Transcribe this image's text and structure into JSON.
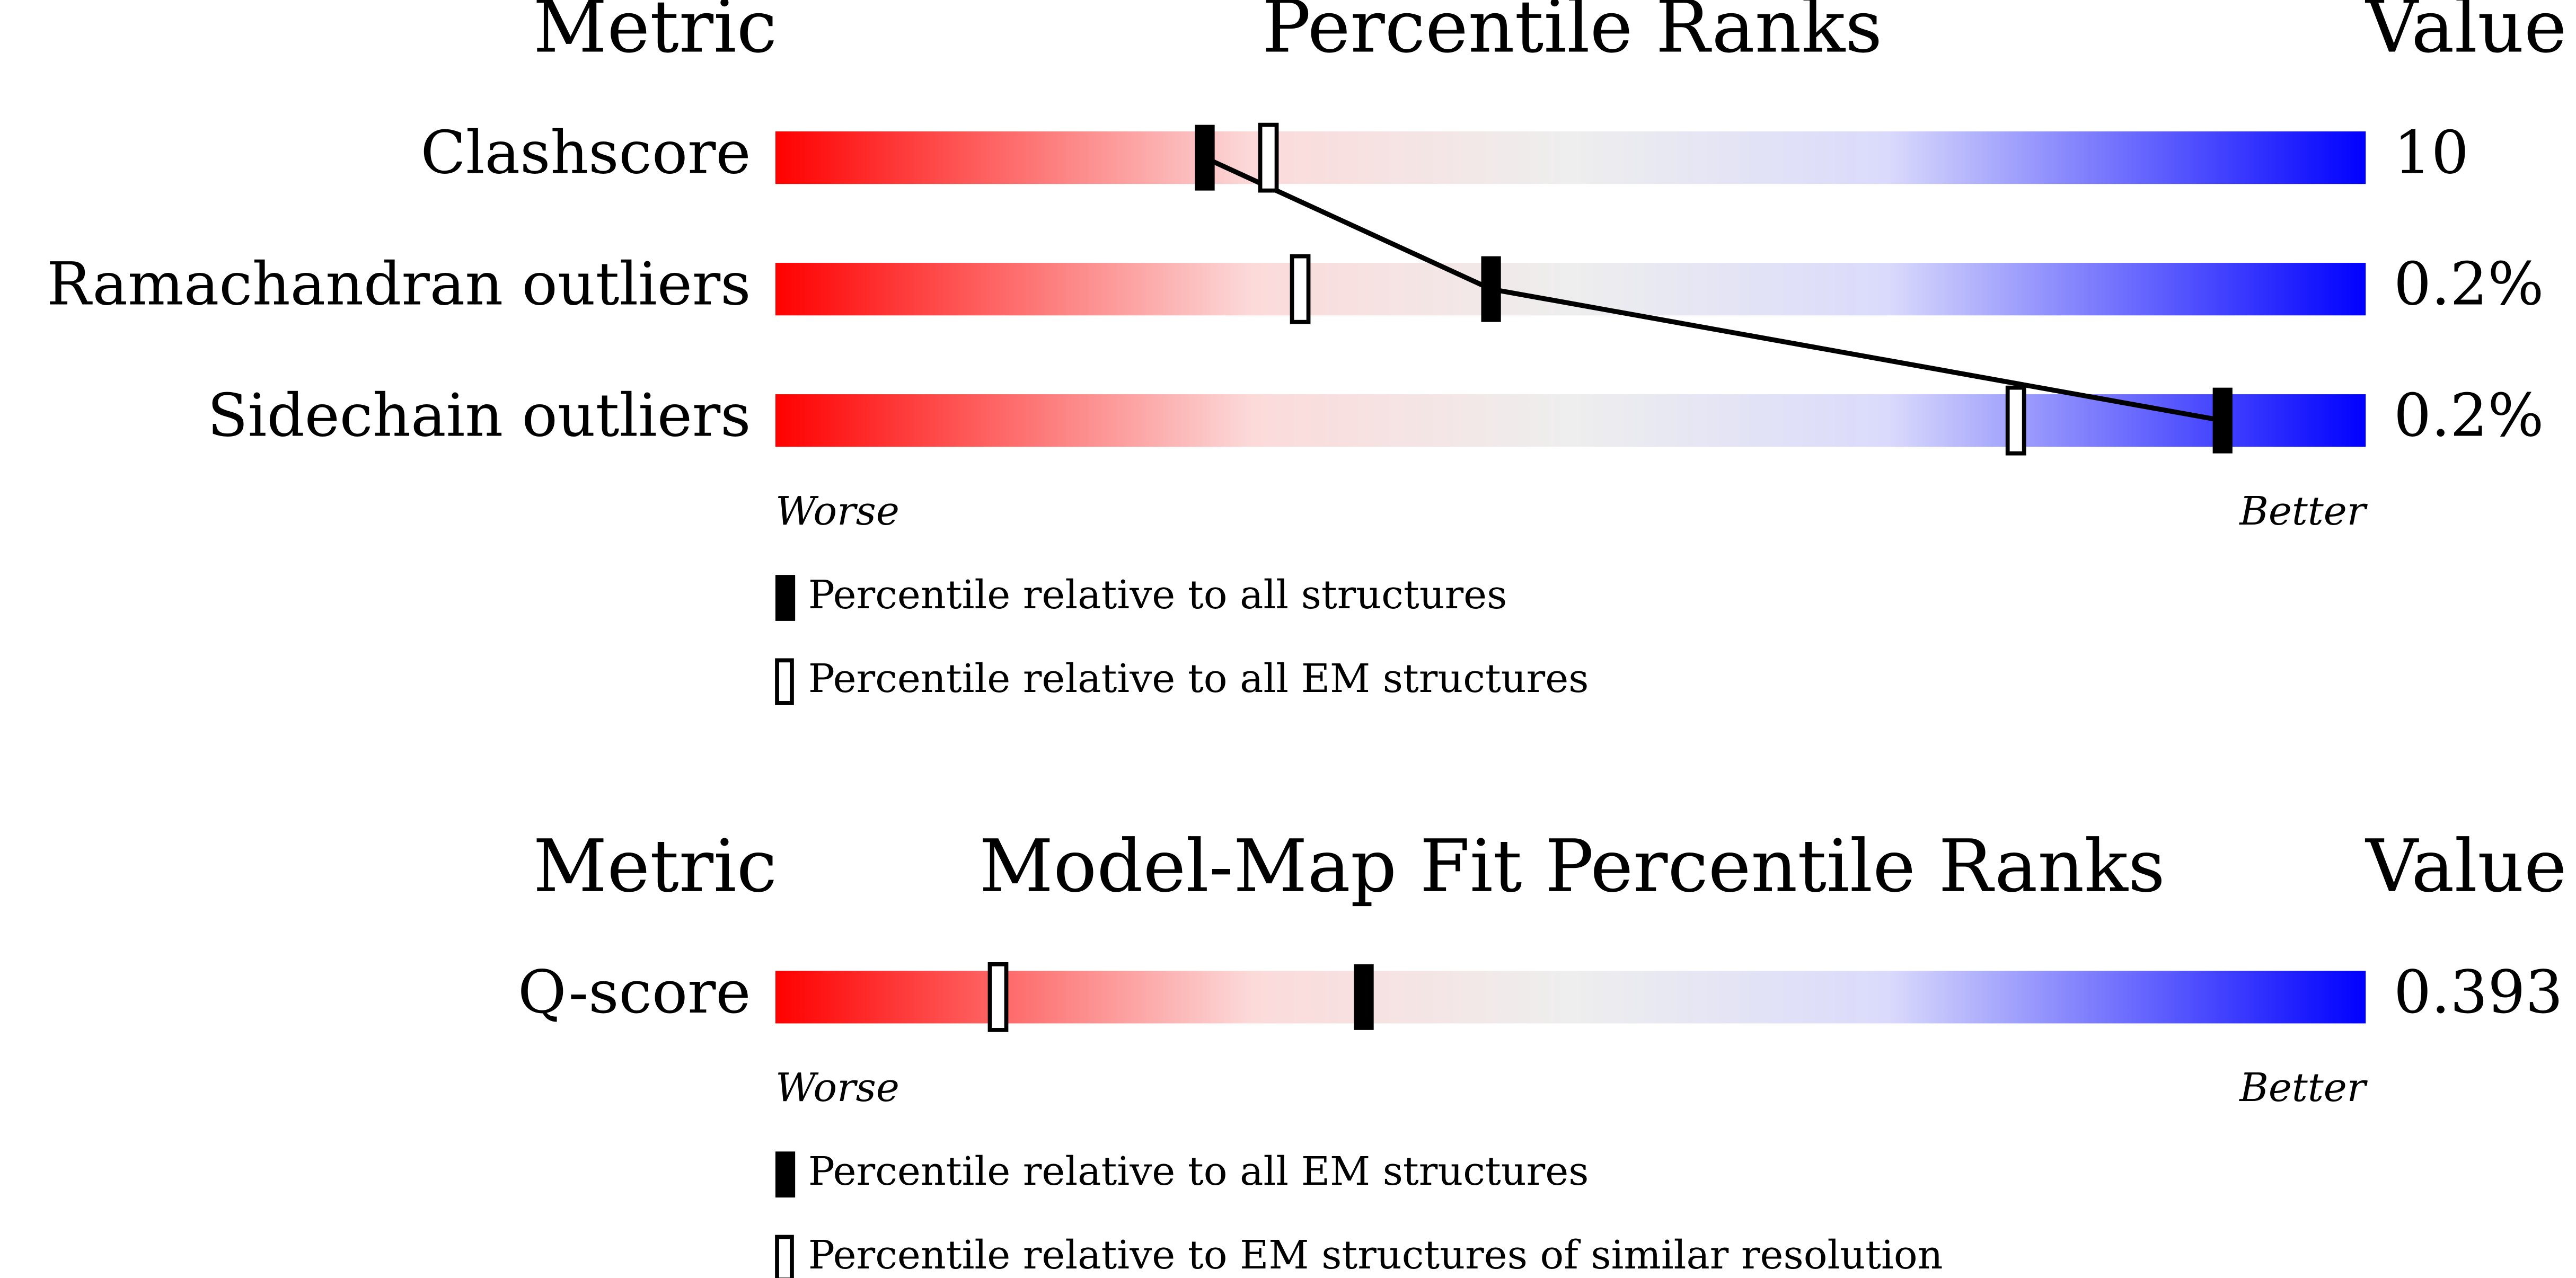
{
  "chart_data": [
    {
      "type": "percentile",
      "metric_header": "Metric",
      "title": "Percentile Ranks",
      "value_header": "Value",
      "worse_label": "Worse",
      "better_label": "Better",
      "categories": [
        "Clashscore",
        "Ramachandran outliers",
        "Sidechain outliers"
      ],
      "value_labels": [
        "10",
        "0.2%",
        "0.2%"
      ],
      "xlim": [
        0,
        100
      ],
      "series": [
        {
          "name": "Percentile relative to all structures",
          "style": "filled",
          "color": "#000000",
          "values": [
            27,
            45,
            91
          ]
        },
        {
          "name": "Percentile relative to all EM structures",
          "style": "outline",
          "color": "#000000",
          "values": [
            31,
            33,
            78
          ]
        }
      ]
    },
    {
      "type": "percentile",
      "metric_header": "Metric",
      "title": "Model-Map Fit Percentile Ranks",
      "value_header": "Value",
      "worse_label": "Worse",
      "better_label": "Better",
      "categories": [
        "Q-score"
      ],
      "value_labels": [
        "0.393"
      ],
      "xlim": [
        0,
        100
      ],
      "series": [
        {
          "name": "Percentile relative to all EM structures",
          "style": "filled",
          "color": "#000000",
          "values": [
            37
          ]
        },
        {
          "name": "Percentile relative to EM structures of similar resolution",
          "style": "outline",
          "color": "#000000",
          "values": [
            14
          ]
        }
      ]
    }
  ]
}
